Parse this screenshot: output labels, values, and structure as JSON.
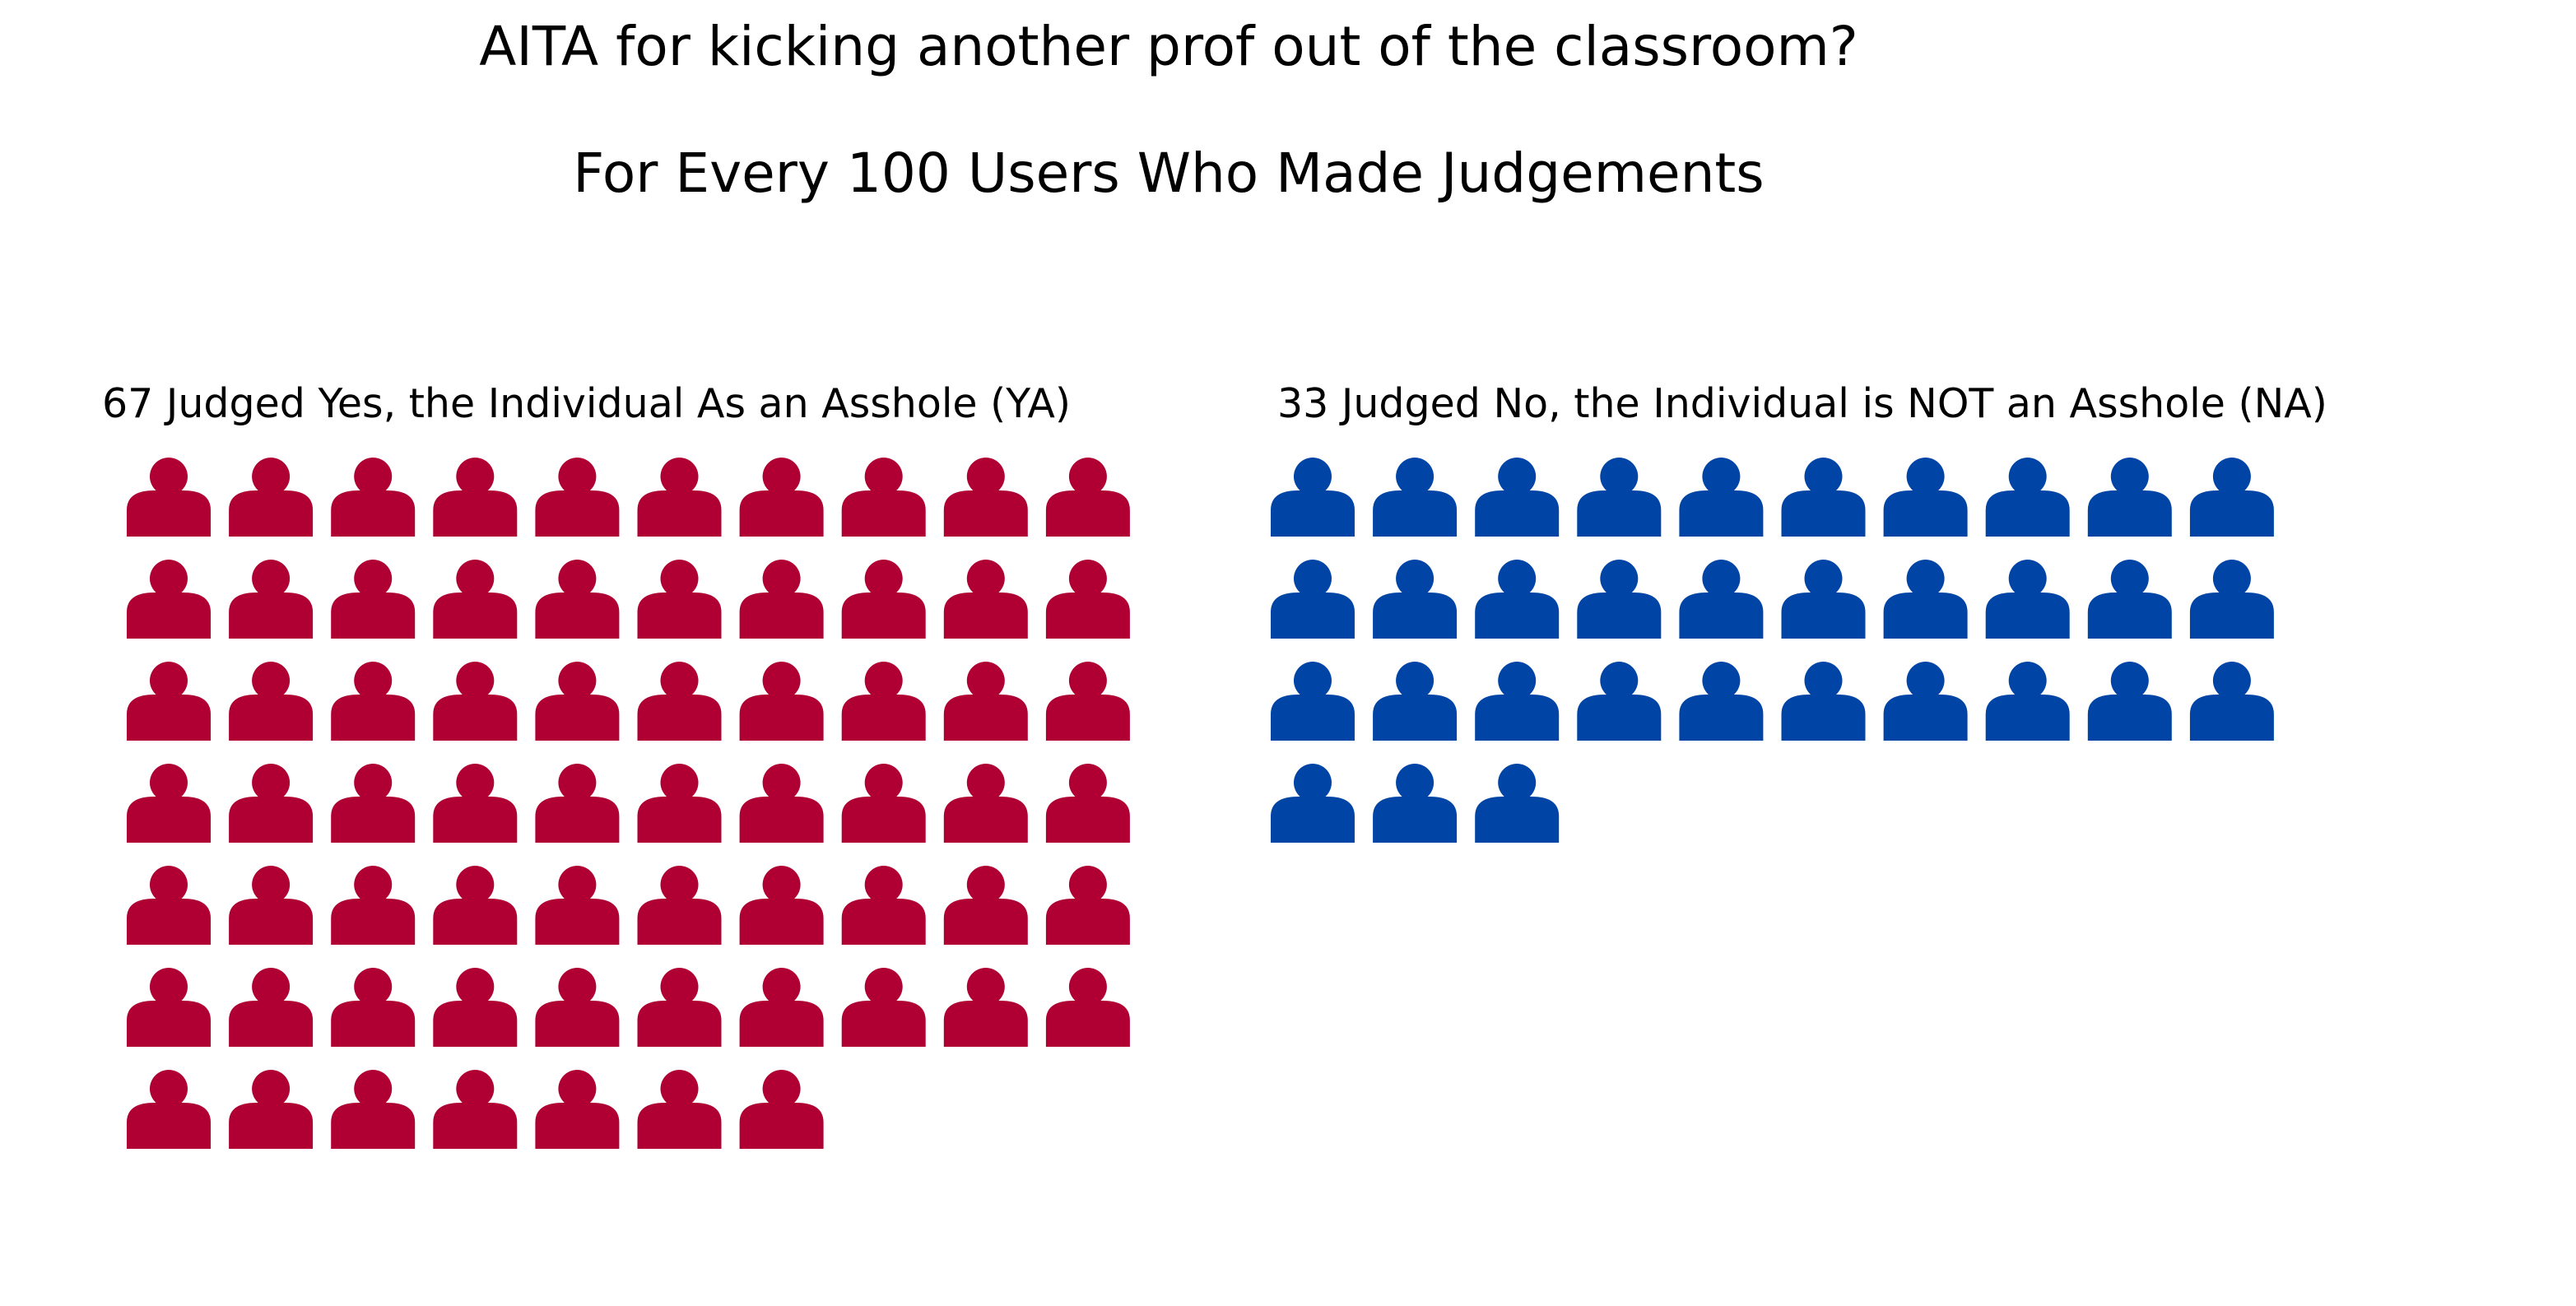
{
  "chart_data": {
    "type": "pictograph",
    "title_line_1": "AITA for kicking another prof out of the classroom?",
    "title_line_2": "For Every 100 Users Who Made Judgements",
    "icon": "person-icon",
    "columns_per_row": 10,
    "total": 100,
    "groups": [
      {
        "key": "YA",
        "label": "67 Judged Yes, the Individual As an Asshole (YA)",
        "value": 67,
        "color": "#b00033"
      },
      {
        "key": "NA",
        "label": "33 Judged No, the Individual is NOT an Asshole (NA)",
        "value": 33,
        "color": "#0044a6"
      }
    ]
  }
}
